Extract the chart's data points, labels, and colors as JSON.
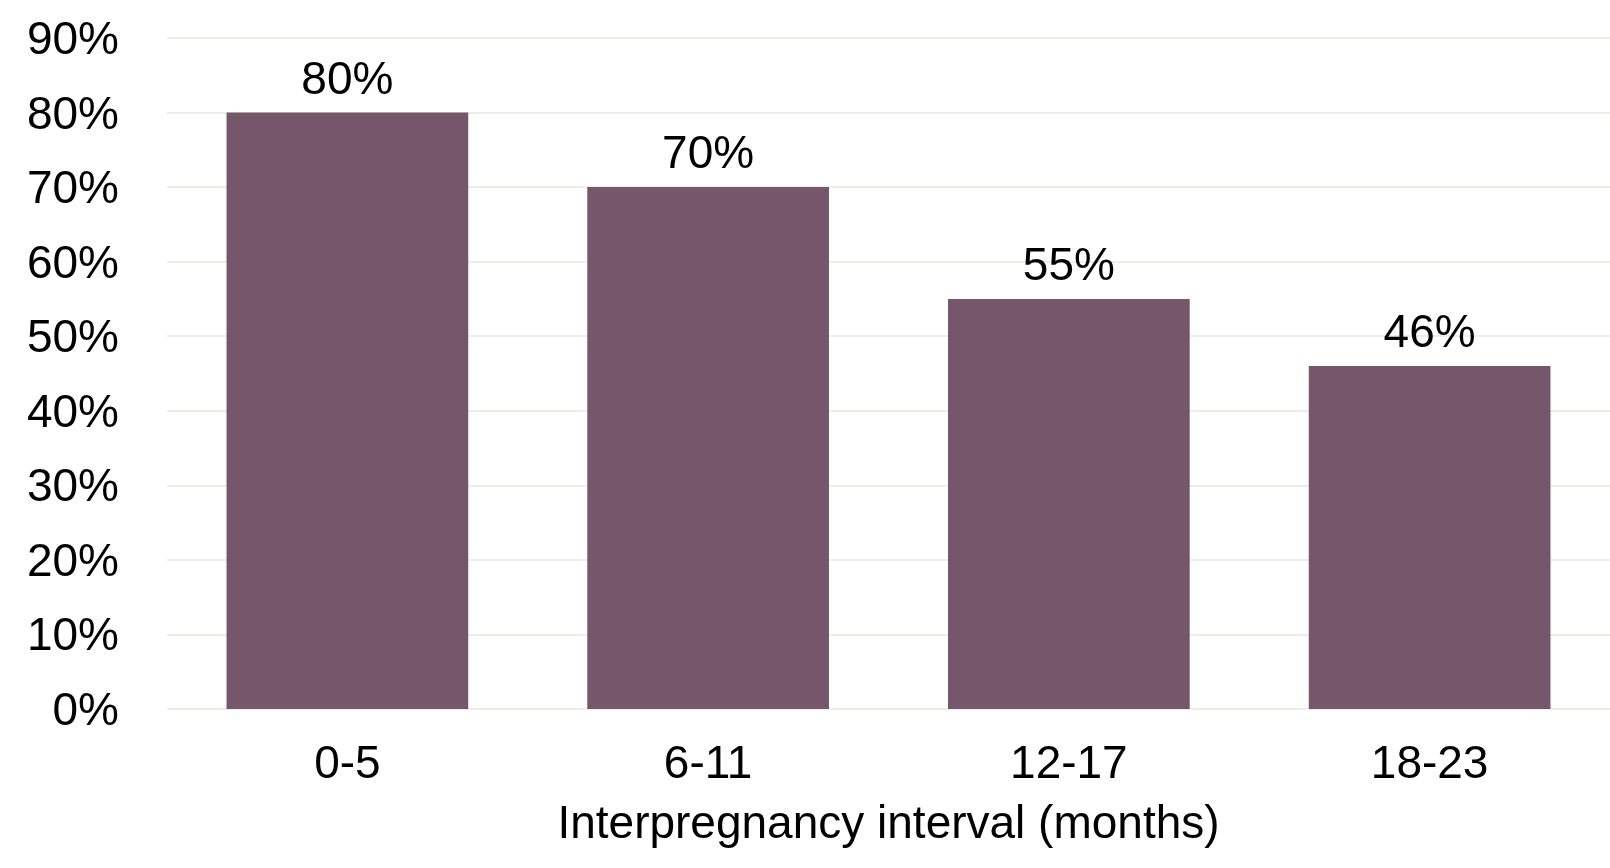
{
  "chart_data": {
    "type": "bar",
    "xlabel": "Interpregnancy interval (months)",
    "categories": [
      "0-5",
      "6-11",
      "12-17",
      "18-23"
    ],
    "values": [
      80,
      70,
      55,
      46
    ],
    "color": "#76566b",
    "value_labels": [
      "80%",
      "70%",
      "55%",
      "46%"
    ],
    "ylim": [
      0,
      90
    ],
    "yticks": [
      {
        "value": 0,
        "label": "0%"
      },
      {
        "value": 10,
        "label": "10%"
      },
      {
        "value": 20,
        "label": "20%"
      },
      {
        "value": 30,
        "label": "30%"
      },
      {
        "value": 40,
        "label": "40%"
      },
      {
        "value": 50,
        "label": "50%"
      },
      {
        "value": 60,
        "label": "60%"
      },
      {
        "value": 70,
        "label": "70%"
      },
      {
        "value": 80,
        "label": "80%"
      },
      {
        "value": 90,
        "label": "90%"
      }
    ],
    "grid": "y"
  }
}
